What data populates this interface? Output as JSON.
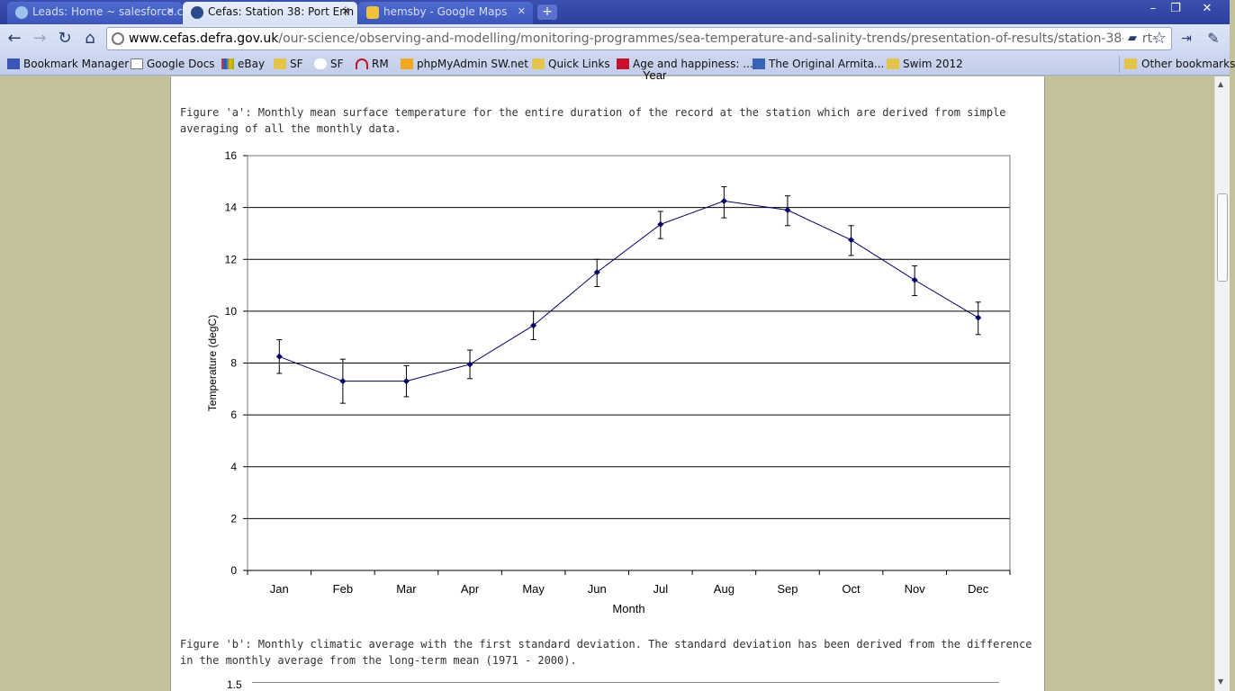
{
  "browser": {
    "tabs": [
      {
        "label": "Leads: Home ~ salesforce.c",
        "active": false
      },
      {
        "label": "Cefas: Station 38: Port Erin",
        "active": true
      },
      {
        "label": "hemsby - Google Maps",
        "active": false
      }
    ],
    "url_host": "www.cefas.defra.gov.uk",
    "url_path": "/our-science/observing-and-modelling/monitoring-programmes/sea-temperature-and-salinity-trends/presentation-of-results/station-38-port-",
    "bookmarks": [
      {
        "label": "Bookmark Manager",
        "icon": "star-icon"
      },
      {
        "label": "Google Docs",
        "icon": "doc-icon"
      },
      {
        "label": "eBay",
        "icon": "ebay-icon"
      },
      {
        "label": "SF",
        "icon": "folder-icon"
      },
      {
        "label": "SF",
        "icon": "cloud-icon"
      },
      {
        "label": "RM",
        "icon": "headphones-icon"
      },
      {
        "label": "phpMyAdmin SW.net",
        "icon": "php-icon"
      },
      {
        "label": "Quick Links",
        "icon": "folder-icon"
      },
      {
        "label": "Age and happiness: ...",
        "icon": "e-icon"
      },
      {
        "label": "The Original Armita...",
        "icon": "page-icon"
      },
      {
        "label": "Swim 2012",
        "icon": "folder-icon"
      }
    ],
    "other_bookmarks": "Other bookmarks"
  },
  "page": {
    "year_stub": "Year",
    "figure_a_caption": "Figure 'a': Monthly mean surface temperature for the entire duration of the record at the station which are derived from simple averaging of all the monthly data.",
    "figure_b_caption": "Figure 'b': Monthly climatic average with the first standard deviation. The standard deviation has been derived from the difference in the monthly average from the long-term mean (1971 - 2000).",
    "figure_b_first_tick": "1.5"
  },
  "chart_data": {
    "type": "line",
    "xlabel": "Month",
    "ylabel": "Temperature  (degC)",
    "categories": [
      "Jan",
      "Feb",
      "Mar",
      "Apr",
      "May",
      "Jun",
      "Jul",
      "Aug",
      "Sep",
      "Oct",
      "Nov",
      "Dec"
    ],
    "series": [
      {
        "values": [
          8.25,
          7.3,
          7.3,
          7.95,
          9.45,
          11.5,
          13.35,
          14.25,
          13.9,
          12.75,
          11.2,
          9.75
        ],
        "error_low": [
          7.6,
          6.45,
          6.7,
          7.4,
          8.9,
          10.95,
          12.8,
          13.6,
          13.3,
          12.15,
          10.6,
          9.1
        ],
        "error_high": [
          8.9,
          8.15,
          7.9,
          8.5,
          10.0,
          12.0,
          13.85,
          14.8,
          14.45,
          13.3,
          11.75,
          10.35
        ],
        "color": "#000066"
      }
    ],
    "ylim": [
      0,
      16
    ],
    "yticks": [
      0,
      2,
      4,
      6,
      8,
      10,
      12,
      14,
      16
    ],
    "grid": true
  }
}
